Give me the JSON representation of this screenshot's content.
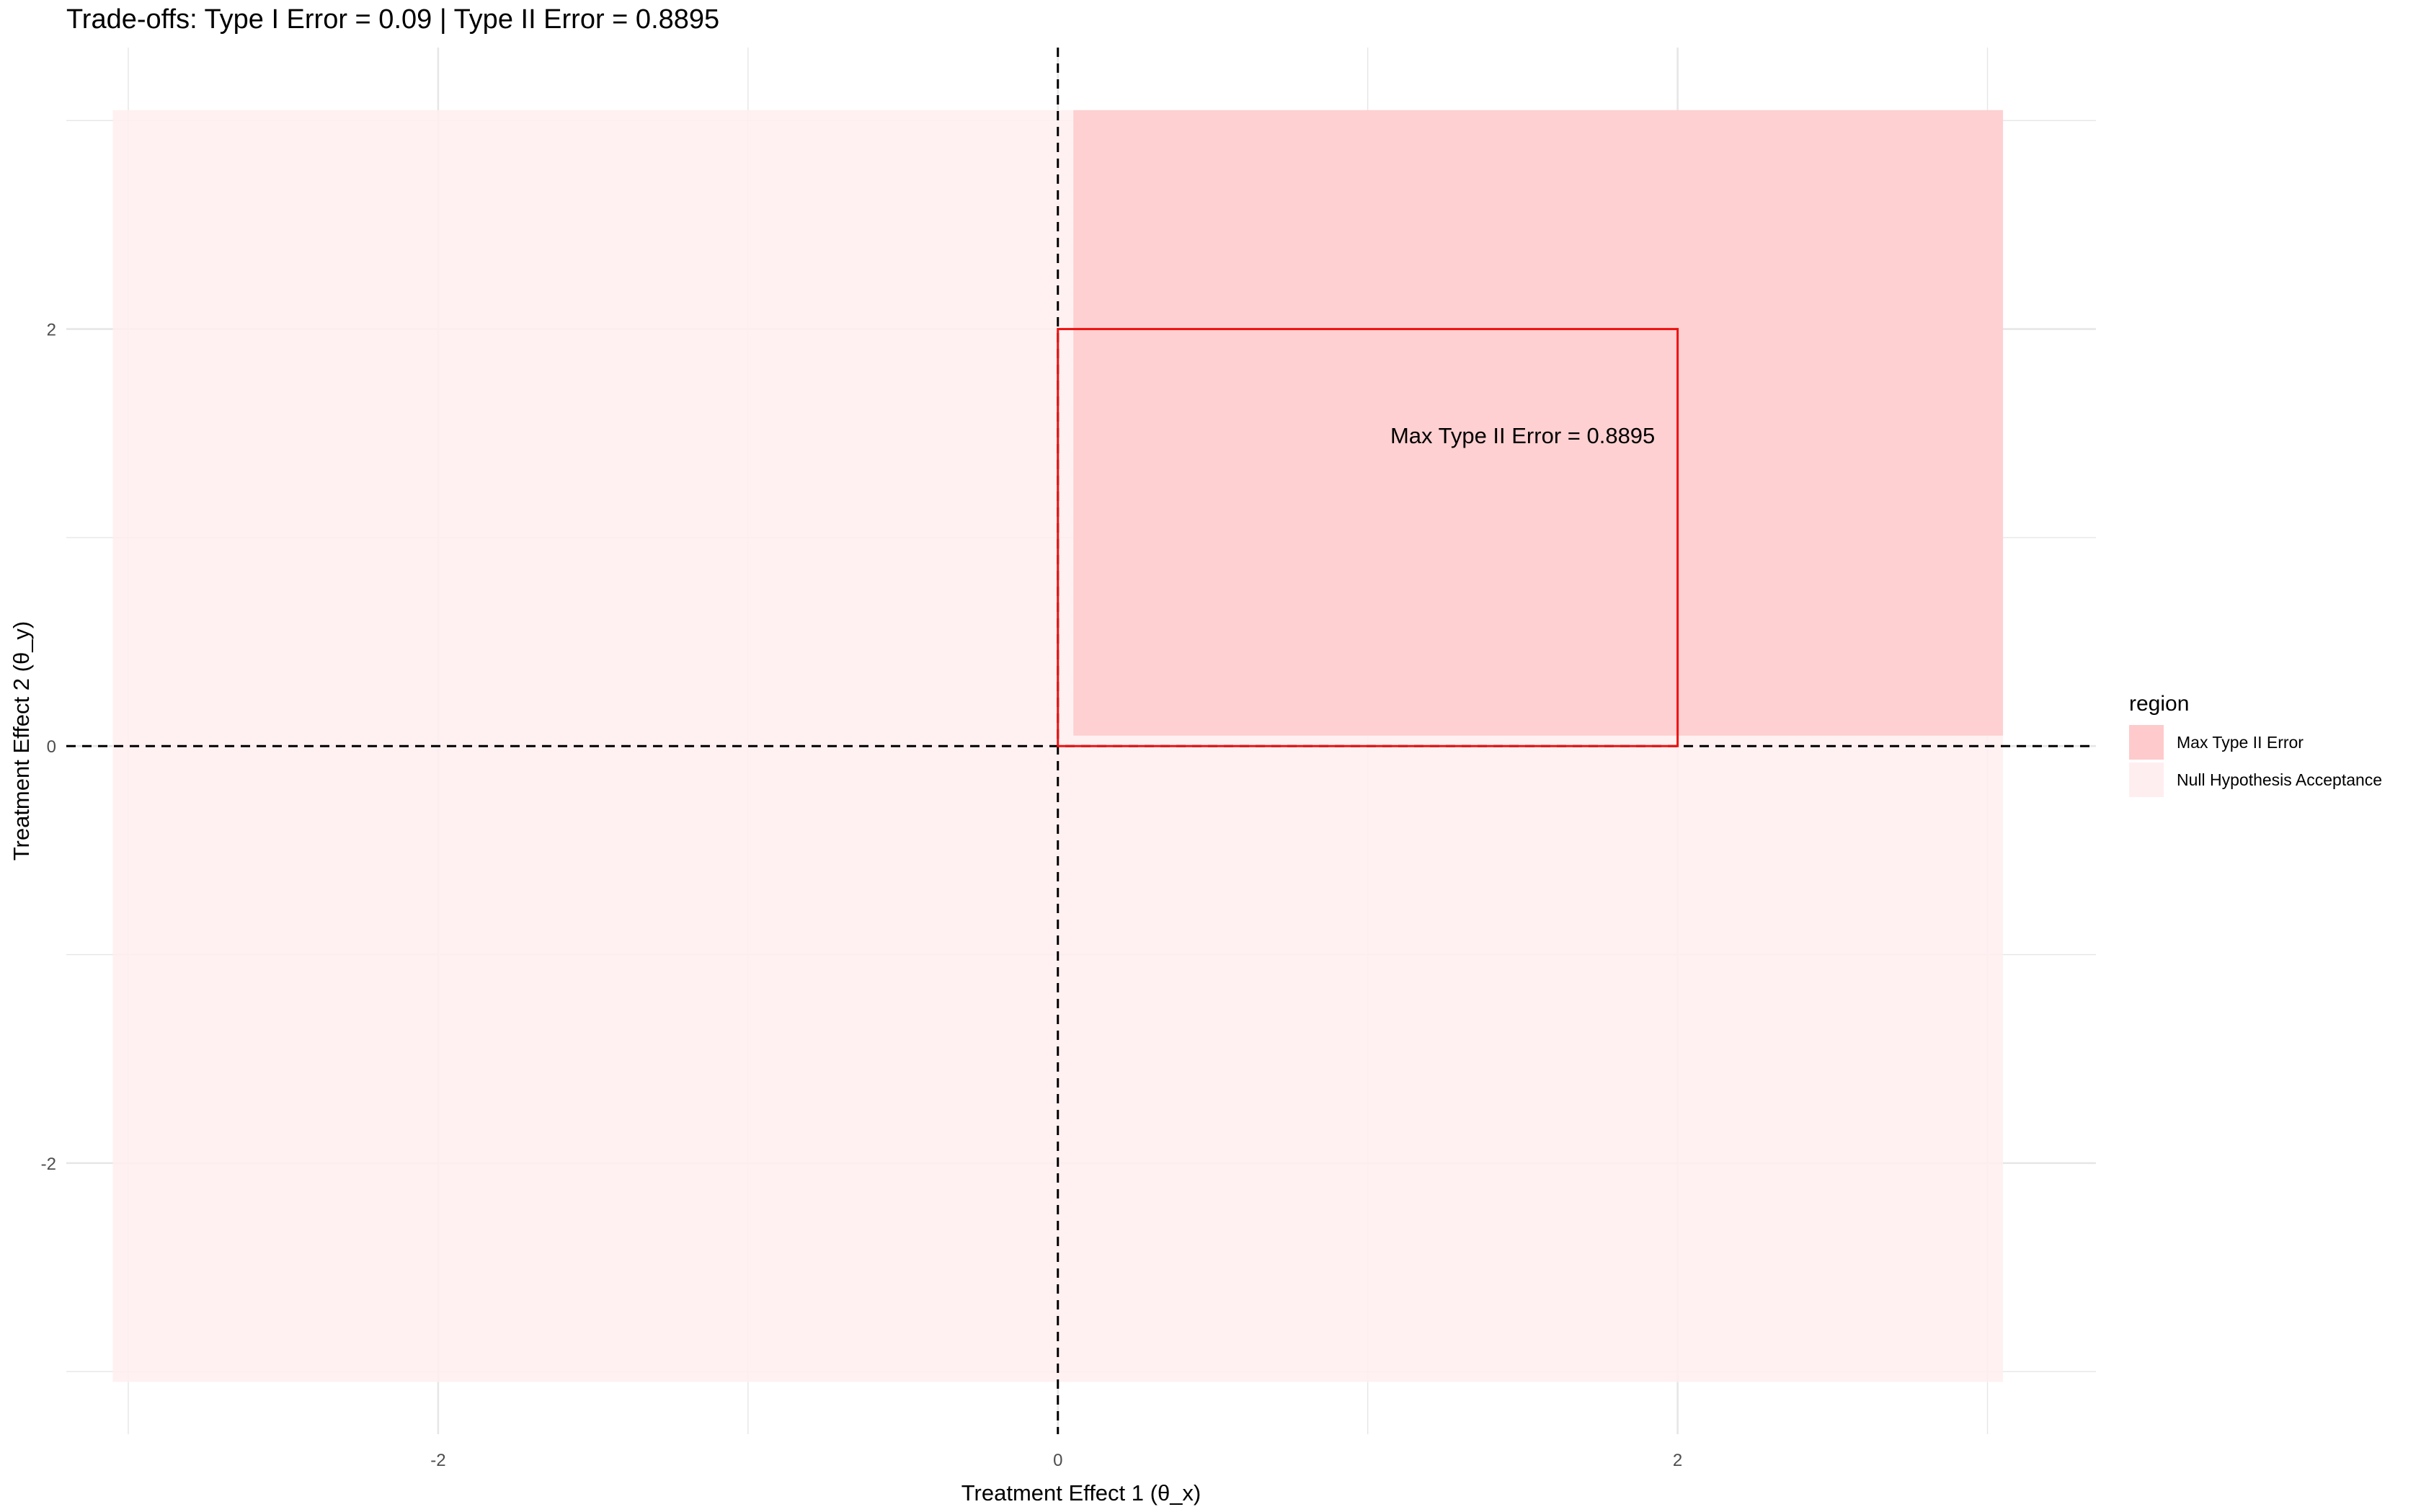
{
  "chart_data": {
    "type": "area",
    "title": "Trade-offs: Type I Error = 0.09 | Type II Error = 0.8895",
    "xlabel": "Treatment Effect 1 (θ_x)",
    "ylabel": "Treatment Effect 2 (θ_y)",
    "xlim": [
      -3.2,
      3.35
    ],
    "ylim": [
      -3.3,
      3.35
    ],
    "x_ticks": [
      -2,
      0,
      2
    ],
    "y_ticks": [
      -2,
      0,
      2
    ],
    "x_tick_labels": [
      "-2",
      "0",
      "2"
    ],
    "y_tick_labels": [
      "-2",
      "0",
      "2"
    ],
    "grid": true,
    "legend": {
      "title": "region",
      "position": "right",
      "entries": [
        {
          "label": "Max Type II Error",
          "color": "#FECACB"
        },
        {
          "label": "Null Hypothesis Acceptance",
          "color": "#FFEEF0"
        }
      ]
    },
    "regions": [
      {
        "name": "Null Hypothesis Acceptance",
        "x": [
          -3.05,
          3.05
        ],
        "y": [
          -3.05,
          3.05
        ],
        "color": "#FFEEF0"
      },
      {
        "name": "Max Type II Error",
        "x": [
          0.05,
          3.05
        ],
        "y": [
          0.05,
          3.05
        ],
        "color": "#FECACB"
      }
    ],
    "rectangle": {
      "x": [
        0,
        2
      ],
      "y": [
        0,
        2
      ],
      "color": "#EE1111"
    },
    "reference_lines": {
      "x": 0,
      "y": 0,
      "style": "dashed"
    },
    "annotation": {
      "text": "Max Type II Error = 0.8895",
      "x": 1.5,
      "y": 1.5
    }
  },
  "colors": {
    "grid": "#E6E6E6",
    "axis_text": "#4D4D4D"
  }
}
